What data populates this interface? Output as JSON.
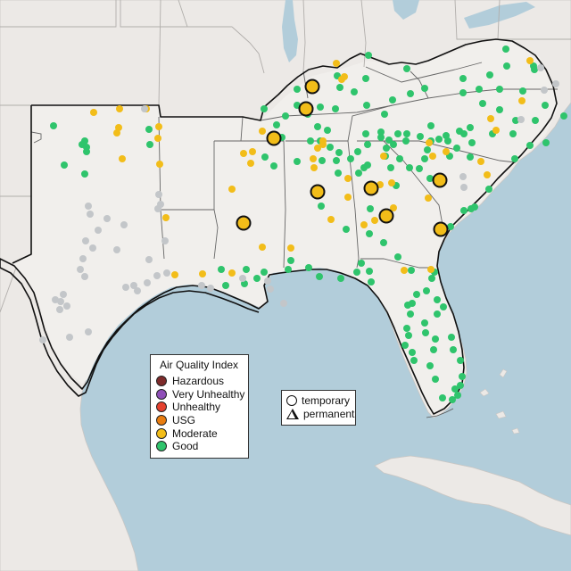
{
  "legend_aqi": {
    "title": "Air Quality Index",
    "items": [
      {
        "label": "Hazardous",
        "color": "#7e2b2b"
      },
      {
        "label": "Very Unhealthy",
        "color": "#8f4fb8"
      },
      {
        "label": "Unhealthy",
        "color": "#e5412f"
      },
      {
        "label": "USG",
        "color": "#e97d10"
      },
      {
        "label": "Moderate",
        "color": "#f2bd19"
      },
      {
        "label": "Good",
        "color": "#2fc46c"
      }
    ]
  },
  "legend_type": {
    "items": [
      {
        "label": "temporary",
        "shape": "circle"
      },
      {
        "label": "permanent",
        "shape": "triangle"
      }
    ]
  },
  "colors": {
    "water": "#b7cfdc",
    "land": "#ece9e6",
    "region_land": "#eeebe8",
    "no_data_gray": "#c3c6c9",
    "highlight_border": "#111111",
    "state_lines": "#b1aeab"
  },
  "site_counts": {
    "good": 150,
    "moderate": 45,
    "no_data": 40,
    "large_temporary_moderate": 9
  }
}
